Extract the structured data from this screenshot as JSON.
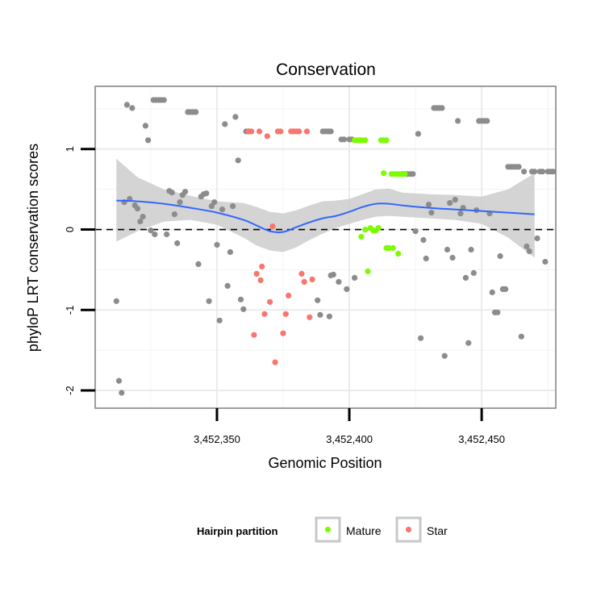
{
  "chart_data": {
    "type": "scatter",
    "title": "Conservation",
    "xlabel": "Genomic Position",
    "ylabel": "phyloP LRT conservation scores",
    "xlim": [
      3452304,
      3452478
    ],
    "ylim": [
      -2.22,
      1.78
    ],
    "x_ticks": [
      {
        "value": 3452350,
        "label": "3,452,350"
      },
      {
        "value": 3452400,
        "label": "3,452,400"
      },
      {
        "value": 3452450,
        "label": "3,452,450"
      }
    ],
    "y_ticks": [
      {
        "value": -2,
        "label": "-2"
      },
      {
        "value": -1,
        "label": "-1"
      },
      {
        "value": 0,
        "label": "0"
      },
      {
        "value": 1,
        "label": "1"
      }
    ],
    "grid": true,
    "reference_line": {
      "y": 0,
      "style": "dashed"
    },
    "legend": {
      "title": "Hairpin partition",
      "position": "bottom",
      "entries": [
        {
          "label": "Mature",
          "color": "#7cfc00"
        },
        {
          "label": "Star",
          "color": "#f8766d"
        }
      ]
    },
    "colors": {
      "other": "#8c8c8c",
      "Mature": "#7cfc00",
      "Star": "#f8766d",
      "smooth": "#3366ff",
      "band": "#cccccc"
    },
    "smooth": {
      "x": [
        3452312,
        3452320,
        3452330,
        3452340,
        3452350,
        3452360,
        3452365,
        3452370,
        3452375,
        3452380,
        3452385,
        3452390,
        3452395,
        3452400,
        3452405,
        3452410,
        3452415,
        3452420,
        3452430,
        3452440,
        3452450,
        3452460,
        3452470
      ],
      "y": [
        0.36,
        0.35,
        0.32,
        0.27,
        0.21,
        0.12,
        0.05,
        -0.02,
        -0.03,
        0.03,
        0.09,
        0.14,
        0.17,
        0.22,
        0.28,
        0.32,
        0.32,
        0.3,
        0.27,
        0.25,
        0.23,
        0.21,
        0.19
      ],
      "lower": [
        -0.15,
        -0.02,
        0.1,
        0.12,
        0.06,
        -0.1,
        -0.2,
        -0.26,
        -0.28,
        -0.22,
        -0.13,
        -0.05,
        0.02,
        0.07,
        0.12,
        0.16,
        0.17,
        0.16,
        0.14,
        0.12,
        0.07,
        -0.1,
        -0.35
      ],
      "upper": [
        0.88,
        0.65,
        0.5,
        0.42,
        0.35,
        0.33,
        0.28,
        0.22,
        0.2,
        0.24,
        0.3,
        0.35,
        0.36,
        0.38,
        0.44,
        0.5,
        0.51,
        0.46,
        0.44,
        0.43,
        0.41,
        0.5,
        0.7
      ]
    },
    "series": [
      {
        "name": "Other",
        "points": [
          [
            3452312,
            -0.89
          ],
          [
            3452313,
            -1.88
          ],
          [
            3452314,
            -2.03
          ],
          [
            3452315,
            0.34
          ],
          [
            3452316,
            1.55
          ],
          [
            3452317,
            0.38
          ],
          [
            3452318,
            1.51
          ],
          [
            3452319,
            0.3
          ],
          [
            3452320,
            0.26
          ],
          [
            3452321,
            0.1
          ],
          [
            3452322,
            0.16
          ],
          [
            3452323,
            1.29
          ],
          [
            3452324,
            1.11
          ],
          [
            3452325,
            -0.01
          ],
          [
            3452326,
            1.61
          ],
          [
            3452326.5,
            -0.06
          ],
          [
            3452327,
            1.61
          ],
          [
            3452328,
            1.61
          ],
          [
            3452329,
            1.61
          ],
          [
            3452330,
            1.61
          ],
          [
            3452331,
            -0.06
          ],
          [
            3452332,
            0.48
          ],
          [
            3452333,
            0.46
          ],
          [
            3452334,
            0.19
          ],
          [
            3452335,
            -0.17
          ],
          [
            3452336,
            0.34
          ],
          [
            3452337,
            0.43
          ],
          [
            3452338,
            0.47
          ],
          [
            3452339,
            1.46
          ],
          [
            3452340,
            1.46
          ],
          [
            3452341,
            1.46
          ],
          [
            3452342,
            1.46
          ],
          [
            3452343,
            -0.43
          ],
          [
            3452344,
            0.41
          ],
          [
            3452345,
            0.44
          ],
          [
            3452346,
            0.45
          ],
          [
            3452347,
            -0.89
          ],
          [
            3452348,
            0.29
          ],
          [
            3452349,
            0.34
          ],
          [
            3452350,
            -0.19
          ],
          [
            3452351,
            -1.13
          ],
          [
            3452352,
            0.25
          ],
          [
            3452353,
            1.31
          ],
          [
            3452354,
            -0.7
          ],
          [
            3452355,
            -0.28
          ],
          [
            3452356,
            0.29
          ],
          [
            3452357,
            1.4
          ],
          [
            3452358,
            0.86
          ],
          [
            3452359,
            -0.87
          ],
          [
            3452360,
            -0.99
          ],
          [
            3452361,
            1.22
          ],
          [
            3452362,
            1.22
          ],
          [
            3452390,
            1.22
          ],
          [
            3452391,
            1.22
          ],
          [
            3452392,
            1.22
          ],
          [
            3452393,
            1.22
          ],
          [
            3452388,
            -0.88
          ],
          [
            3452389,
            -1.06
          ],
          [
            3452392.5,
            -1.08
          ],
          [
            3452393,
            -0.57
          ],
          [
            3452394,
            -0.56
          ],
          [
            3452396,
            -0.65
          ],
          [
            3452397,
            1.12
          ],
          [
            3452398,
            1.12
          ],
          [
            3452399,
            -0.74
          ],
          [
            3452400,
            1.12
          ],
          [
            3452401,
            1.12
          ],
          [
            3452402,
            -0.6
          ],
          [
            3452420,
            0.69
          ],
          [
            3452421,
            0.69
          ],
          [
            3452422,
            0.69
          ],
          [
            3452423,
            0.69
          ],
          [
            3452424,
            0.69
          ],
          [
            3452425,
            -0.02
          ],
          [
            3452426,
            1.19
          ],
          [
            3452427,
            -1.35
          ],
          [
            3452428,
            -0.13
          ],
          [
            3452429,
            -0.36
          ],
          [
            3452430,
            0.31
          ],
          [
            3452431,
            0.21
          ],
          [
            3452432,
            1.51
          ],
          [
            3452433,
            1.51
          ],
          [
            3452434,
            1.51
          ],
          [
            3452435,
            1.51
          ],
          [
            3452436,
            -1.57
          ],
          [
            3452437,
            -0.25
          ],
          [
            3452438,
            0.33
          ],
          [
            3452439,
            -0.35
          ],
          [
            3452440,
            0.37
          ],
          [
            3452441,
            1.35
          ],
          [
            3452442,
            0.2
          ],
          [
            3452443,
            0.27
          ],
          [
            3452444,
            -0.6
          ],
          [
            3452445,
            -1.41
          ],
          [
            3452446,
            -0.25
          ],
          [
            3452447,
            -0.54
          ],
          [
            3452448,
            0.24
          ],
          [
            3452449,
            1.35
          ],
          [
            3452450,
            1.35
          ],
          [
            3452451,
            1.35
          ],
          [
            3452452,
            1.35
          ],
          [
            3452453,
            0.2
          ],
          [
            3452454,
            -0.78
          ],
          [
            3452455,
            -1.03
          ],
          [
            3452456,
            -1.03
          ],
          [
            3452457,
            -0.33
          ],
          [
            3452458,
            -0.74
          ],
          [
            3452459,
            -0.74
          ],
          [
            3452460,
            0.78
          ],
          [
            3452461,
            0.78
          ],
          [
            3452462,
            0.78
          ],
          [
            3452463,
            0.78
          ],
          [
            3452464,
            0.78
          ],
          [
            3452465,
            -1.33
          ],
          [
            3452466,
            0.72
          ],
          [
            3452467,
            -0.21
          ],
          [
            3452468,
            -0.27
          ],
          [
            3452469,
            0.72
          ],
          [
            3452470,
            0.72
          ],
          [
            3452471,
            -0.11
          ],
          [
            3452472,
            0.72
          ],
          [
            3452473,
            0.72
          ],
          [
            3452474,
            -0.4
          ],
          [
            3452475,
            0.72
          ],
          [
            3452476,
            0.72
          ],
          [
            3452477,
            0.72
          ]
        ]
      },
      {
        "name": "Mature",
        "points": [
          [
            3452402,
            1.11
          ],
          [
            3452403,
            1.11
          ],
          [
            3452404,
            1.11
          ],
          [
            3452405,
            1.11
          ],
          [
            3452406,
            1.11
          ],
          [
            3452404.5,
            -0.09
          ],
          [
            3452406,
            0.0
          ],
          [
            3452407,
            -0.52
          ],
          [
            3452408,
            0.02
          ],
          [
            3452409,
            -0.01
          ],
          [
            3452410,
            -0.01
          ],
          [
            3452411,
            0.02
          ],
          [
            3452412,
            1.11
          ],
          [
            3452413,
            1.11
          ],
          [
            3452414,
            1.11
          ],
          [
            3452413,
            0.7
          ],
          [
            3452414,
            -0.23
          ],
          [
            3452415,
            -0.23
          ],
          [
            3452416,
            0.69
          ],
          [
            3452416.5,
            -0.23
          ],
          [
            3452417,
            0.69
          ],
          [
            3452418,
            0.69
          ],
          [
            3452418.5,
            -0.3
          ],
          [
            3452419,
            0.69
          ],
          [
            3452420,
            0.69
          ],
          [
            3452421,
            0.69
          ]
        ]
      },
      {
        "name": "Star",
        "points": [
          [
            3452362,
            1.22
          ],
          [
            3452363,
            1.22
          ],
          [
            3452364,
            -1.31
          ],
          [
            3452365,
            -0.55
          ],
          [
            3452366,
            1.22
          ],
          [
            3452366.5,
            -0.63
          ],
          [
            3452367,
            -0.46
          ],
          [
            3452368,
            -1.05
          ],
          [
            3452369,
            1.16
          ],
          [
            3452370,
            -0.9
          ],
          [
            3452371,
            0.04
          ],
          [
            3452372,
            -1.65
          ],
          [
            3452373,
            1.22
          ],
          [
            3452374,
            1.22
          ],
          [
            3452375,
            -1.29
          ],
          [
            3452376,
            -1.05
          ],
          [
            3452377,
            -0.82
          ],
          [
            3452378,
            1.22
          ],
          [
            3452379,
            1.22
          ],
          [
            3452380,
            1.22
          ],
          [
            3452381,
            1.22
          ],
          [
            3452382,
            -0.55
          ],
          [
            3452383,
            -0.65
          ],
          [
            3452384,
            1.22
          ],
          [
            3452385,
            -1.09
          ],
          [
            3452386,
            -0.62
          ]
        ]
      }
    ]
  }
}
